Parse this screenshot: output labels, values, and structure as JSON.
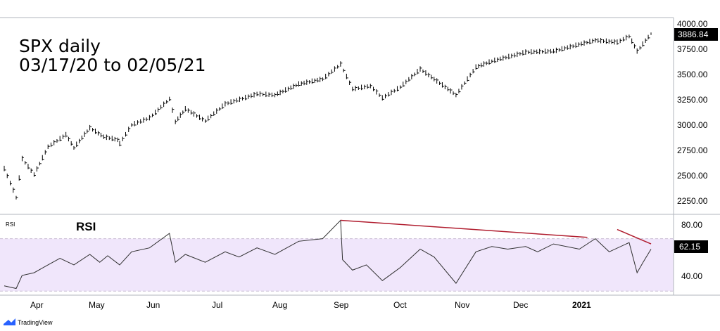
{
  "chart_data": {
    "type": "ohlc",
    "title_lines": [
      "SPX daily",
      "03/17/20 to 02/05/21"
    ],
    "price_ticks": [
      "4000.00",
      "3750.00",
      "3500.00",
      "3250.00",
      "3000.00",
      "2750.00",
      "2500.00",
      "2250.00"
    ],
    "price_ylim": [
      2150,
      4000
    ],
    "last_price": "3886.84",
    "x_labels": [
      "Apr",
      "May",
      "Jun",
      "Jul",
      "Aug",
      "Sep",
      "Oct",
      "Nov",
      "Dec",
      "2021"
    ],
    "price_series": [
      {
        "x": "2020-03-17",
        "y": 2530
      },
      {
        "x": "2020-03-23",
        "y": 2240
      },
      {
        "x": "2020-03-26",
        "y": 2630
      },
      {
        "x": "2020-04-01",
        "y": 2470
      },
      {
        "x": "2020-04-08",
        "y": 2750
      },
      {
        "x": "2020-04-17",
        "y": 2870
      },
      {
        "x": "2020-04-21",
        "y": 2740
      },
      {
        "x": "2020-04-29",
        "y": 2940
      },
      {
        "x": "2020-05-06",
        "y": 2850
      },
      {
        "x": "2020-05-13",
        "y": 2820
      },
      {
        "x": "2020-05-14",
        "y": 2780
      },
      {
        "x": "2020-05-20",
        "y": 2970
      },
      {
        "x": "2020-05-29",
        "y": 3040
      },
      {
        "x": "2020-06-08",
        "y": 3230
      },
      {
        "x": "2020-06-11",
        "y": 3000
      },
      {
        "x": "2020-06-16",
        "y": 3130
      },
      {
        "x": "2020-06-26",
        "y": 3010
      },
      {
        "x": "2020-07-06",
        "y": 3180
      },
      {
        "x": "2020-07-22",
        "y": 3280
      },
      {
        "x": "2020-07-31",
        "y": 3270
      },
      {
        "x": "2020-08-12",
        "y": 3380
      },
      {
        "x": "2020-08-24",
        "y": 3430
      },
      {
        "x": "2020-09-02",
        "y": 3580
      },
      {
        "x": "2020-09-08",
        "y": 3330
      },
      {
        "x": "2020-09-17",
        "y": 3360
      },
      {
        "x": "2020-09-23",
        "y": 3240
      },
      {
        "x": "2020-10-02",
        "y": 3350
      },
      {
        "x": "2020-10-12",
        "y": 3530
      },
      {
        "x": "2020-10-19",
        "y": 3430
      },
      {
        "x": "2020-10-30",
        "y": 3270
      },
      {
        "x": "2020-11-09",
        "y": 3550
      },
      {
        "x": "2020-11-17",
        "y": 3610
      },
      {
        "x": "2020-12-04",
        "y": 3700
      },
      {
        "x": "2020-12-18",
        "y": 3710
      },
      {
        "x": "2021-01-08",
        "y": 3820
      },
      {
        "x": "2021-01-19",
        "y": 3800
      },
      {
        "x": "2021-01-25",
        "y": 3860
      },
      {
        "x": "2021-01-29",
        "y": 3710
      },
      {
        "x": "2021-02-05",
        "y": 3887
      }
    ],
    "rsi_label": "RSI",
    "rsi_ticks": [
      "80.00",
      "40.00"
    ],
    "rsi_ylim": [
      28,
      88
    ],
    "rsi_band": [
      30,
      70
    ],
    "rsi_last": "62.15",
    "rsi_series": [
      {
        "x": "2020-03-17",
        "y": 34
      },
      {
        "x": "2020-03-23",
        "y": 32
      },
      {
        "x": "2020-03-26",
        "y": 42
      },
      {
        "x": "2020-04-01",
        "y": 44
      },
      {
        "x": "2020-04-08",
        "y": 50
      },
      {
        "x": "2020-04-14",
        "y": 55
      },
      {
        "x": "2020-04-21",
        "y": 50
      },
      {
        "x": "2020-04-29",
        "y": 58
      },
      {
        "x": "2020-05-04",
        "y": 52
      },
      {
        "x": "2020-05-08",
        "y": 57
      },
      {
        "x": "2020-05-14",
        "y": 50
      },
      {
        "x": "2020-05-20",
        "y": 60
      },
      {
        "x": "2020-05-29",
        "y": 63
      },
      {
        "x": "2020-06-08",
        "y": 74
      },
      {
        "x": "2020-06-11",
        "y": 52
      },
      {
        "x": "2020-06-16",
        "y": 58
      },
      {
        "x": "2020-06-26",
        "y": 52
      },
      {
        "x": "2020-07-06",
        "y": 60
      },
      {
        "x": "2020-07-13",
        "y": 56
      },
      {
        "x": "2020-07-22",
        "y": 63
      },
      {
        "x": "2020-07-31",
        "y": 58
      },
      {
        "x": "2020-08-12",
        "y": 68
      },
      {
        "x": "2020-08-24",
        "y": 70
      },
      {
        "x": "2020-09-02",
        "y": 84
      },
      {
        "x": "2020-09-03",
        "y": 54
      },
      {
        "x": "2020-09-08",
        "y": 46
      },
      {
        "x": "2020-09-15",
        "y": 50
      },
      {
        "x": "2020-09-23",
        "y": 38
      },
      {
        "x": "2020-10-02",
        "y": 48
      },
      {
        "x": "2020-10-12",
        "y": 62
      },
      {
        "x": "2020-10-19",
        "y": 56
      },
      {
        "x": "2020-10-30",
        "y": 36
      },
      {
        "x": "2020-11-09",
        "y": 60
      },
      {
        "x": "2020-11-17",
        "y": 64
      },
      {
        "x": "2020-11-25",
        "y": 62
      },
      {
        "x": "2020-12-04",
        "y": 64
      },
      {
        "x": "2020-12-10",
        "y": 60
      },
      {
        "x": "2020-12-18",
        "y": 66
      },
      {
        "x": "2020-12-31",
        "y": 62
      },
      {
        "x": "2021-01-08",
        "y": 70
      },
      {
        "x": "2021-01-15",
        "y": 60
      },
      {
        "x": "2021-01-25",
        "y": 67
      },
      {
        "x": "2021-01-29",
        "y": 44
      },
      {
        "x": "2021-02-01",
        "y": 52
      },
      {
        "x": "2021-02-05",
        "y": 62
      }
    ],
    "divergence_lines": [
      {
        "from": {
          "x": "2020-09-02",
          "y": 84
        },
        "to": {
          "x": "2021-01-04",
          "y": 71
        }
      },
      {
        "from": {
          "x": "2021-01-19",
          "y": 77
        },
        "to": {
          "x": "2021-02-05",
          "y": 66
        }
      }
    ],
    "grid": false,
    "colors": {
      "price_line": "#000000",
      "rsi_line": "#303030",
      "rsi_band": "#f0e6fb",
      "divergence": "#b01c2e"
    }
  },
  "footer": {
    "brand": "TradingView",
    "logo_icon": "tradingview-logo-icon"
  }
}
